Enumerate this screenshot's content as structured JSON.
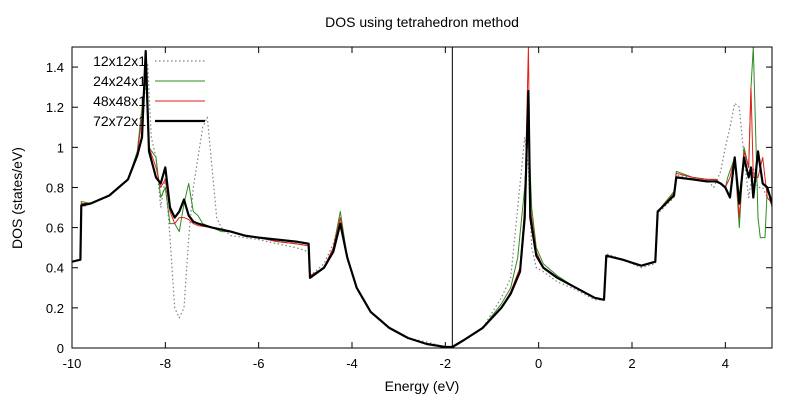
{
  "chart_data": {
    "type": "line",
    "title": "DOS using tetrahedron method",
    "xlabel": "Energy (eV)",
    "ylabel": "DOS (states/eV)",
    "xlim": [
      -10,
      5
    ],
    "ylim": [
      0,
      1.5
    ],
    "xticks": [
      -10,
      -8,
      -6,
      -4,
      -2,
      0,
      2,
      4
    ],
    "yticks": [
      0,
      0.2,
      0.4,
      0.6,
      0.8,
      1,
      1.2,
      1.4
    ],
    "xtick_labels": [
      "-10",
      "-8",
      "-6",
      "-4",
      "-2",
      "0",
      "2",
      "4"
    ],
    "ytick_labels": [
      "0",
      "0.2",
      "0.4",
      "0.6",
      "0.8",
      "1",
      "1.2",
      "1.4"
    ],
    "grid": false,
    "legend_position": "top-left",
    "vertical_line_x": -1.85,
    "series": [
      {
        "name": "12x12x1",
        "color": "#808080",
        "style": "dotted",
        "x": [
          -10,
          -9.82,
          -9.8,
          -9.6,
          -9.2,
          -8.8,
          -8.6,
          -8.45,
          -8.38,
          -8.3,
          -8.2,
          -8.1,
          -8.0,
          -7.9,
          -7.8,
          -7.7,
          -7.6,
          -7.5,
          -7.4,
          -7.3,
          -7.2,
          -7.1,
          -7.0,
          -6.9,
          -6.8,
          -6.6,
          -6.3,
          -6.0,
          -5.6,
          -5.2,
          -4.93,
          -4.9,
          -4.6,
          -4.4,
          -4.25,
          -4.1,
          -3.9,
          -3.6,
          -3.2,
          -2.8,
          -2.4,
          -2.0,
          -1.85,
          -1.6,
          -1.2,
          -0.8,
          -0.6,
          -0.45,
          -0.3,
          -0.22,
          -0.15,
          -0.05,
          0.1,
          0.4,
          0.8,
          1.2,
          1.4,
          1.45,
          1.8,
          2.2,
          2.5,
          2.55,
          2.9,
          2.95,
          3.3,
          3.6,
          3.75,
          3.9,
          4.0,
          4.1,
          4.2,
          4.3,
          4.4,
          4.5,
          4.6,
          4.7,
          4.8,
          4.9,
          5.0
        ],
        "y": [
          0.43,
          0.44,
          0.7,
          0.72,
          0.76,
          0.84,
          0.95,
          1.25,
          1.42,
          1.05,
          0.95,
          0.7,
          0.85,
          0.55,
          0.2,
          0.15,
          0.2,
          0.55,
          0.8,
          0.95,
          1.1,
          1.15,
          0.9,
          0.65,
          0.6,
          0.56,
          0.55,
          0.54,
          0.52,
          0.5,
          0.48,
          0.36,
          0.42,
          0.52,
          0.65,
          0.45,
          0.3,
          0.18,
          0.1,
          0.05,
          0.03,
          0.005,
          0.005,
          0.04,
          0.1,
          0.25,
          0.35,
          0.7,
          1.05,
          0.9,
          0.5,
          0.4,
          0.38,
          0.33,
          0.29,
          0.24,
          0.24,
          0.47,
          0.44,
          0.4,
          0.42,
          0.67,
          0.75,
          0.86,
          0.85,
          0.84,
          0.8,
          0.88,
          1.0,
          1.1,
          1.22,
          1.2,
          0.95,
          0.75,
          0.9,
          0.8,
          0.8,
          0.75,
          0.72
        ]
      },
      {
        "name": "24x24x1",
        "color": "#2e8b22",
        "style": "solid",
        "x": [
          -10,
          -9.82,
          -9.8,
          -9.6,
          -9.2,
          -8.8,
          -8.6,
          -8.5,
          -8.42,
          -8.35,
          -8.2,
          -8.1,
          -8.0,
          -7.9,
          -7.8,
          -7.7,
          -7.6,
          -7.5,
          -7.4,
          -7.3,
          -7.2,
          -7.0,
          -6.8,
          -6.6,
          -6.3,
          -6.0,
          -5.6,
          -5.2,
          -4.93,
          -4.9,
          -4.6,
          -4.4,
          -4.25,
          -4.1,
          -3.9,
          -3.6,
          -3.2,
          -2.8,
          -2.4,
          -2.0,
          -1.85,
          -1.6,
          -1.2,
          -0.8,
          -0.6,
          -0.45,
          -0.3,
          -0.22,
          -0.15,
          -0.05,
          0.1,
          0.4,
          0.8,
          1.2,
          1.4,
          1.45,
          1.8,
          2.2,
          2.5,
          2.55,
          2.9,
          2.95,
          3.3,
          3.6,
          3.8,
          3.9,
          4.0,
          4.05,
          4.2,
          4.3,
          4.4,
          4.5,
          4.55,
          4.6,
          4.7,
          4.75,
          4.85,
          4.9,
          5.0
        ],
        "y": [
          0.43,
          0.44,
          0.73,
          0.72,
          0.76,
          0.84,
          0.98,
          1.2,
          1.35,
          1.0,
          0.95,
          0.75,
          0.8,
          0.62,
          0.62,
          0.58,
          0.72,
          0.82,
          0.68,
          0.66,
          0.62,
          0.6,
          0.58,
          0.58,
          0.56,
          0.55,
          0.53,
          0.52,
          0.51,
          0.36,
          0.4,
          0.5,
          0.68,
          0.45,
          0.3,
          0.18,
          0.1,
          0.05,
          0.02,
          0.005,
          0.005,
          0.04,
          0.1,
          0.22,
          0.3,
          0.45,
          0.8,
          1.1,
          0.7,
          0.5,
          0.42,
          0.36,
          0.3,
          0.25,
          0.24,
          0.46,
          0.44,
          0.41,
          0.43,
          0.68,
          0.78,
          0.88,
          0.85,
          0.84,
          0.84,
          0.82,
          0.8,
          0.85,
          0.95,
          0.6,
          1.0,
          0.9,
          1.3,
          1.5,
          0.65,
          0.55,
          0.55,
          0.8,
          0.7
        ]
      },
      {
        "name": "48x48x1",
        "color": "#e0201a",
        "style": "solid",
        "x": [
          -10,
          -9.82,
          -9.8,
          -9.6,
          -9.2,
          -8.8,
          -8.6,
          -8.5,
          -8.42,
          -8.35,
          -8.2,
          -8.1,
          -8.0,
          -7.9,
          -7.8,
          -7.7,
          -7.6,
          -7.5,
          -7.4,
          -7.3,
          -7.0,
          -6.6,
          -6.3,
          -6.0,
          -5.6,
          -5.2,
          -4.93,
          -4.9,
          -4.6,
          -4.4,
          -4.25,
          -4.1,
          -3.9,
          -3.6,
          -3.2,
          -2.8,
          -2.4,
          -2.0,
          -1.85,
          -1.6,
          -1.2,
          -0.8,
          -0.6,
          -0.4,
          -0.3,
          -0.22,
          -0.18,
          -0.05,
          0.1,
          0.4,
          0.8,
          1.2,
          1.4,
          1.45,
          1.8,
          2.2,
          2.5,
          2.55,
          2.9,
          2.95,
          3.3,
          3.6,
          3.8,
          3.9,
          4.0,
          4.1,
          4.2,
          4.3,
          4.4,
          4.5,
          4.55,
          4.6,
          4.7,
          4.8,
          4.9,
          5.0
        ],
        "y": [
          0.43,
          0.44,
          0.72,
          0.72,
          0.76,
          0.84,
          0.97,
          1.15,
          1.4,
          1.0,
          0.9,
          0.8,
          0.84,
          0.68,
          0.62,
          0.65,
          0.65,
          0.64,
          0.62,
          0.61,
          0.6,
          0.58,
          0.56,
          0.55,
          0.53,
          0.52,
          0.51,
          0.36,
          0.4,
          0.5,
          0.65,
          0.45,
          0.3,
          0.18,
          0.1,
          0.05,
          0.02,
          0.005,
          0.005,
          0.04,
          0.1,
          0.2,
          0.28,
          0.4,
          0.7,
          1.5,
          0.7,
          0.48,
          0.4,
          0.35,
          0.3,
          0.25,
          0.24,
          0.46,
          0.44,
          0.41,
          0.43,
          0.68,
          0.77,
          0.87,
          0.85,
          0.84,
          0.84,
          0.82,
          0.8,
          0.85,
          0.95,
          0.65,
          0.98,
          0.9,
          1.3,
          0.85,
          0.85,
          0.95,
          0.75,
          0.72
        ]
      },
      {
        "name": "72x72x1",
        "color": "#000000",
        "style": "thick",
        "x": [
          -10,
          -9.82,
          -9.8,
          -9.6,
          -9.2,
          -8.8,
          -8.6,
          -8.5,
          -8.42,
          -8.35,
          -8.2,
          -8.1,
          -8.0,
          -7.9,
          -7.8,
          -7.7,
          -7.6,
          -7.5,
          -7.4,
          -7.3,
          -7.0,
          -6.6,
          -6.3,
          -6.0,
          -5.6,
          -5.2,
          -4.93,
          -4.9,
          -4.6,
          -4.4,
          -4.25,
          -4.1,
          -3.9,
          -3.6,
          -3.2,
          -2.8,
          -2.4,
          -2.0,
          -1.85,
          -1.6,
          -1.2,
          -0.8,
          -0.6,
          -0.4,
          -0.3,
          -0.22,
          -0.18,
          -0.05,
          0.1,
          0.4,
          0.8,
          1.2,
          1.4,
          1.45,
          1.8,
          2.2,
          2.5,
          2.55,
          2.9,
          2.95,
          3.3,
          3.6,
          3.8,
          3.9,
          4.0,
          4.1,
          4.2,
          4.3,
          4.4,
          4.5,
          4.55,
          4.6,
          4.7,
          4.8,
          4.9,
          5.0
        ],
        "y": [
          0.43,
          0.44,
          0.71,
          0.72,
          0.76,
          0.84,
          0.96,
          1.05,
          1.48,
          0.98,
          0.85,
          0.82,
          0.9,
          0.7,
          0.65,
          0.68,
          0.74,
          0.66,
          0.63,
          0.62,
          0.6,
          0.58,
          0.56,
          0.55,
          0.54,
          0.53,
          0.52,
          0.35,
          0.4,
          0.48,
          0.62,
          0.45,
          0.3,
          0.18,
          0.1,
          0.05,
          0.02,
          0.005,
          0.005,
          0.04,
          0.1,
          0.2,
          0.27,
          0.38,
          0.65,
          1.28,
          0.65,
          0.46,
          0.4,
          0.35,
          0.3,
          0.25,
          0.24,
          0.46,
          0.44,
          0.41,
          0.43,
          0.68,
          0.76,
          0.85,
          0.84,
          0.83,
          0.83,
          0.82,
          0.8,
          0.75,
          0.95,
          0.72,
          0.95,
          0.85,
          0.9,
          0.75,
          0.98,
          0.82,
          0.8,
          0.72
        ]
      }
    ]
  }
}
